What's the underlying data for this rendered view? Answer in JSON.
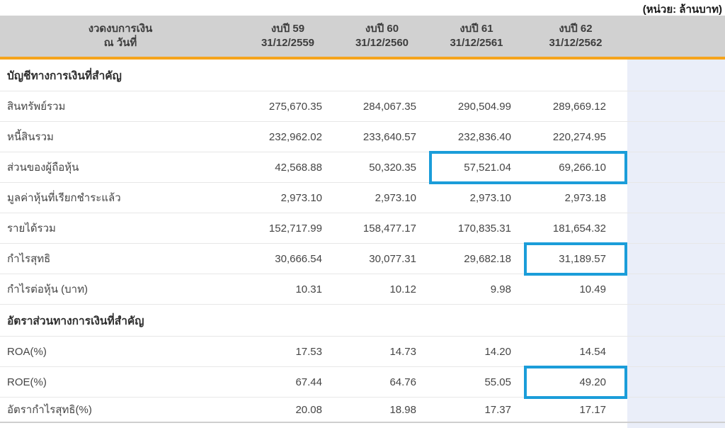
{
  "unit_label": "(หน่วย: ล้านบาท)",
  "colors": {
    "header_bg": "#d1d1d1",
    "accent_orange": "#f5a41c",
    "highlight_blue": "#1b9dd9",
    "right_column_bg": "#eaeef9",
    "row_separator": "#e7e7e7",
    "text": "#454545"
  },
  "table": {
    "period_header": {
      "line1": "งวดงบการเงิน",
      "line2": "ณ วันที่"
    },
    "columns": [
      {
        "label": "งบปี 59",
        "date": "31/12/2559"
      },
      {
        "label": "งบปี 60",
        "date": "31/12/2560"
      },
      {
        "label": "งบปี 61",
        "date": "31/12/2561"
      },
      {
        "label": "งบปี 62",
        "date": "31/12/2562"
      }
    ],
    "sections": [
      {
        "header": "บัญชีทางการเงินที่สำคัญ",
        "rows": [
          {
            "label": "สินทรัพย์รวม",
            "values": [
              "275,670.35",
              "284,067.35",
              "290,504.99",
              "289,669.12"
            ]
          },
          {
            "label": "หนี้สินรวม",
            "values": [
              "232,962.02",
              "233,640.57",
              "232,836.40",
              "220,274.95"
            ]
          },
          {
            "label": "ส่วนของผู้ถือหุ้น",
            "values": [
              "42,568.88",
              "50,320.35",
              "57,521.04",
              "69,266.10"
            ]
          },
          {
            "label": "มูลค่าหุ้นที่เรียกชำระแล้ว",
            "values": [
              "2,973.10",
              "2,973.10",
              "2,973.10",
              "2,973.18"
            ]
          },
          {
            "label": "รายได้รวม",
            "values": [
              "152,717.99",
              "158,477.17",
              "170,835.31",
              "181,654.32"
            ]
          },
          {
            "label": "กำไรสุทธิ",
            "values": [
              "30,666.54",
              "30,077.31",
              "29,682.18",
              "31,189.57"
            ]
          },
          {
            "label": "กำไรต่อหุ้น (บาท)",
            "values": [
              "10.31",
              "10.12",
              "9.98",
              "10.49"
            ]
          }
        ]
      },
      {
        "header": "อัตราส่วนทางการเงินที่สำคัญ",
        "rows": [
          {
            "label": "ROA(%)",
            "values": [
              "17.53",
              "14.73",
              "14.20",
              "14.54"
            ]
          },
          {
            "label": "ROE(%)",
            "values": [
              "67.44",
              "64.76",
              "55.05",
              "49.20"
            ]
          },
          {
            "label": "อัตรากำไรสุทธิ(%)",
            "values": [
              "20.08",
              "18.98",
              "17.37",
              "17.17"
            ]
          }
        ]
      }
    ],
    "highlights": [
      {
        "section": 0,
        "row": 2,
        "cols": [
          2,
          3
        ],
        "note": "ส่วนของผู้ถือหุ้น งบปี 61 และ งบปี 62"
      },
      {
        "section": 0,
        "row": 5,
        "cols": [
          3
        ],
        "note": "กำไรสุทธิ งบปี 62"
      },
      {
        "section": 1,
        "row": 1,
        "cols": [
          3
        ],
        "note": "ROE งบปี 62"
      }
    ]
  }
}
